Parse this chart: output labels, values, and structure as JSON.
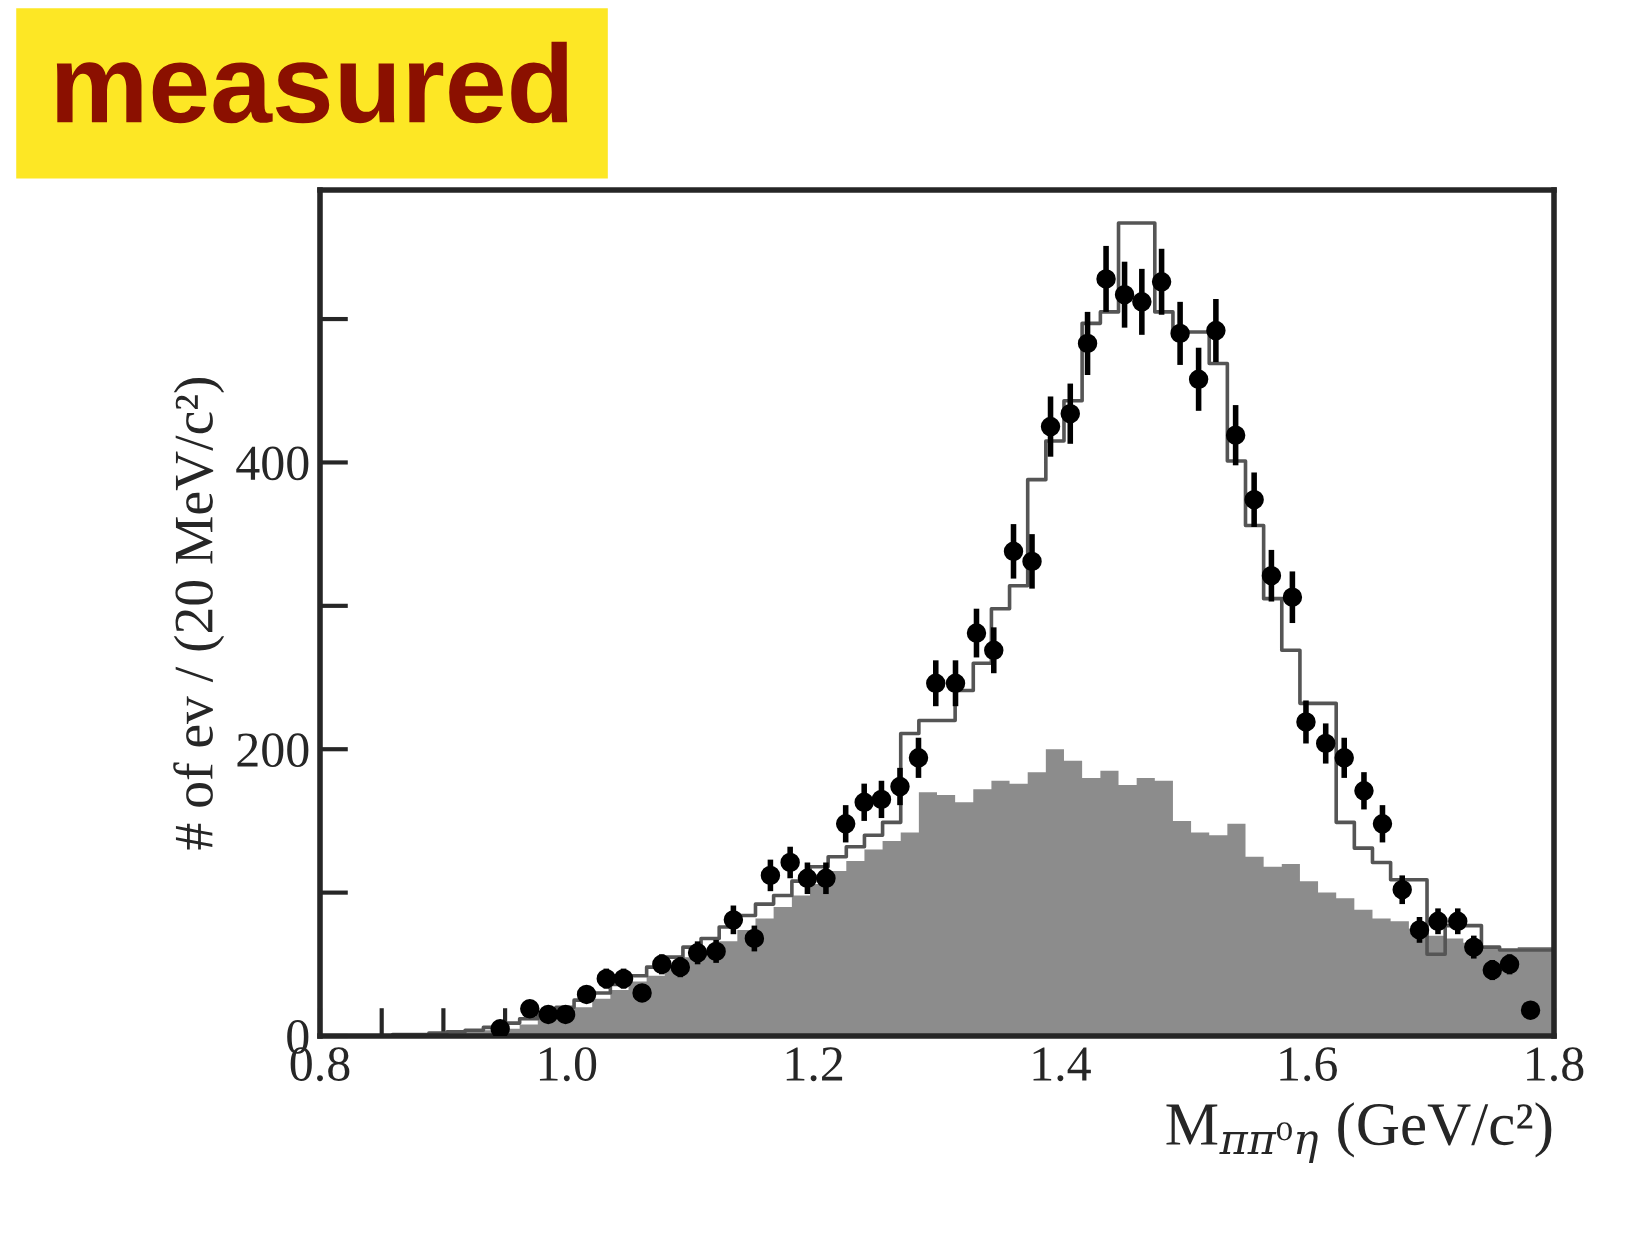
{
  "chart_data": {
    "type": "histogram",
    "xlabel": "M$_{ππ⁰η}$ (GeV/c²)",
    "ylabel": "# of ev / (20 MeV/c²)",
    "annotations": [
      "measured"
    ],
    "bins": [
      0.8,
      0.8147,
      0.8294,
      0.8441,
      0.8588,
      0.8735,
      0.8882,
      0.9029,
      0.9176,
      0.9324,
      0.9471,
      0.9618,
      0.9765,
      0.9912,
      1.0059,
      1.0206,
      1.0353,
      1.05,
      1.0647,
      1.0794,
      1.0941,
      1.1088,
      1.1235,
      1.1382,
      1.1529,
      1.1676,
      1.1824,
      1.1971,
      1.2118,
      1.2265,
      1.2412,
      1.2559,
      1.2706,
      1.2853,
      1.3,
      1.3147,
      1.3294,
      1.3441,
      1.3588,
      1.3735,
      1.3882,
      1.4029,
      1.4176,
      1.4324,
      1.4471,
      1.4618,
      1.4765,
      1.4912,
      1.5059,
      1.5206,
      1.5353,
      1.55,
      1.5647,
      1.5794,
      1.5941,
      1.6088,
      1.6235,
      1.6382,
      1.6529,
      1.6676,
      1.6824,
      1.6971,
      1.7118,
      1.7265,
      1.7412,
      1.7559,
      1.7706,
      1.7853,
      1.8
    ],
    "series": [
      {
        "type": "histogram",
        "color": "#8c8c8c",
        "values": [
          0,
          0,
          0,
          0,
          1,
          1,
          2,
          2,
          3,
          4,
          5,
          8,
          12,
          15,
          20,
          26,
          32,
          38,
          42,
          48,
          55,
          60,
          66,
          74,
          82,
          90,
          98,
          106,
          115,
          122,
          130,
          136,
          142,
          170,
          168,
          163,
          172,
          178,
          176,
          184,
          200,
          192,
          180,
          185,
          175,
          180,
          178,
          150,
          142,
          140,
          148,
          125,
          118,
          120,
          108,
          100,
          96,
          88,
          82,
          80,
          75,
          70,
          68,
          65,
          62,
          60,
          62,
          62
        ]
      },
      {
        "type": "step",
        "color": "#555555",
        "x": [
          0.8,
          0.8147,
          0.8294,
          0.8441,
          0.8588,
          0.8735,
          0.8882,
          0.9029,
          0.9176,
          0.9324,
          0.9471,
          0.9618,
          0.9765,
          0.9912,
          1.0059,
          1.0206,
          1.0353,
          1.05,
          1.0647,
          1.0794,
          1.0941,
          1.1088,
          1.1235,
          1.1382,
          1.1529,
          1.1676,
          1.1824,
          1.1971,
          1.2118,
          1.2265,
          1.2412,
          1.2559,
          1.2706,
          1.2853,
          1.3,
          1.3147,
          1.3294,
          1.3441,
          1.3588,
          1.3735,
          1.3882,
          1.4029,
          1.4176,
          1.4324,
          1.4471,
          1.4618,
          1.4765,
          1.4912,
          1.5059,
          1.5206,
          1.5353,
          1.55,
          1.5647,
          1.5794,
          1.5941,
          1.6088,
          1.6235,
          1.6382,
          1.6529,
          1.6676,
          1.6824,
          1.6971,
          1.7118,
          1.7265,
          1.7412,
          1.7559,
          1.7706,
          1.7853,
          1.8
        ],
        "values": [
          0,
          0,
          0,
          0,
          1,
          1,
          2,
          3,
          4,
          6,
          9,
          12,
          16,
          20,
          25,
          30,
          36,
          42,
          48,
          55,
          62,
          68,
          76,
          84,
          92,
          98,
          108,
          118,
          125,
          132,
          140,
          149,
          211,
          220,
          220,
          241,
          260,
          298,
          314,
          388,
          415,
          443,
          497,
          505,
          567,
          567,
          505,
          491,
          491,
          469,
          401,
          356,
          305,
          269,
          232,
          232,
          149,
          131,
          121,
          109,
          109,
          57,
          77,
          77,
          62,
          60,
          60,
          60,
          60
        ]
      },
      {
        "type": "scatter",
        "color": "#000000",
        "marker": "circle",
        "x": [
          0.946,
          0.97,
          0.985,
          0.999,
          1.016,
          1.032,
          1.046,
          1.061,
          1.077,
          1.092,
          1.106,
          1.121,
          1.135,
          1.152,
          1.165,
          1.181,
          1.195,
          1.21,
          1.226,
          1.241,
          1.255,
          1.27,
          1.285,
          1.299,
          1.315,
          1.332,
          1.346,
          1.362,
          1.377,
          1.392,
          1.408,
          1.422,
          1.437,
          1.452,
          1.466,
          1.482,
          1.497,
          1.512,
          1.526,
          1.542,
          1.557,
          1.571,
          1.588,
          1.599,
          1.615,
          1.63,
          1.646,
          1.661,
          1.677,
          1.691,
          1.706,
          1.722,
          1.735,
          1.75,
          1.764,
          1.781
        ],
        "values": [
          5,
          19,
          15,
          15,
          29,
          40,
          40,
          30,
          50,
          48,
          58,
          59,
          81,
          68,
          112,
          121,
          110,
          110,
          148,
          163,
          165,
          174,
          194,
          246,
          246,
          281,
          269,
          338,
          331,
          425,
          434,
          483,
          528,
          517,
          512,
          526,
          490,
          458,
          492,
          419,
          374,
          321,
          306,
          219,
          204,
          194,
          171,
          148,
          102,
          74,
          80,
          80,
          62,
          46,
          50,
          18
        ],
        "errors": [
          3,
          5,
          5,
          5,
          5,
          7,
          7,
          6,
          7,
          7,
          8,
          8,
          10,
          9,
          11,
          11,
          11,
          11,
          13,
          13,
          13,
          13,
          14,
          16,
          16,
          17,
          16,
          19,
          19,
          21,
          21,
          22,
          23,
          23,
          23,
          23,
          22,
          22,
          22,
          21,
          19,
          18,
          18,
          15,
          14,
          14,
          13,
          13,
          10,
          9,
          9,
          9,
          8,
          7,
          7,
          5
        ]
      }
    ],
    "xlim": [
      0.8,
      1.8
    ],
    "xticks": [
      0.8,
      {
        "value": 0.85,
        "label": null
      },
      {
        "value": 0.9,
        "label": null
      },
      {
        "value": 0.95,
        "label": null
      },
      {
        "value": 1.0,
        "label": "1.0"
      },
      {
        "value": 1.05,
        "label": null
      },
      {
        "value": 1.1,
        "label": null
      },
      {
        "value": 1.15,
        "label": null
      },
      1.2,
      {
        "value": 1.25,
        "label": null
      },
      {
        "value": 1.3,
        "label": null
      },
      {
        "value": 1.35,
        "label": null
      },
      1.4,
      {
        "value": 1.45,
        "label": null
      },
      {
        "value": 1.5,
        "label": null
      },
      {
        "value": 1.55,
        "label": null
      },
      1.6,
      {
        "value": 1.65,
        "label": null
      },
      {
        "value": 1.7,
        "label": null
      },
      {
        "value": 1.75,
        "label": null
      },
      1.8
    ],
    "ylim": [
      0,
      590
    ],
    "yticks": [
      0,
      {
        "value": 100,
        "label": null
      },
      200,
      {
        "value": 300,
        "label": null
      },
      400,
      {
        "value": 500,
        "label": null
      }
    ]
  }
}
